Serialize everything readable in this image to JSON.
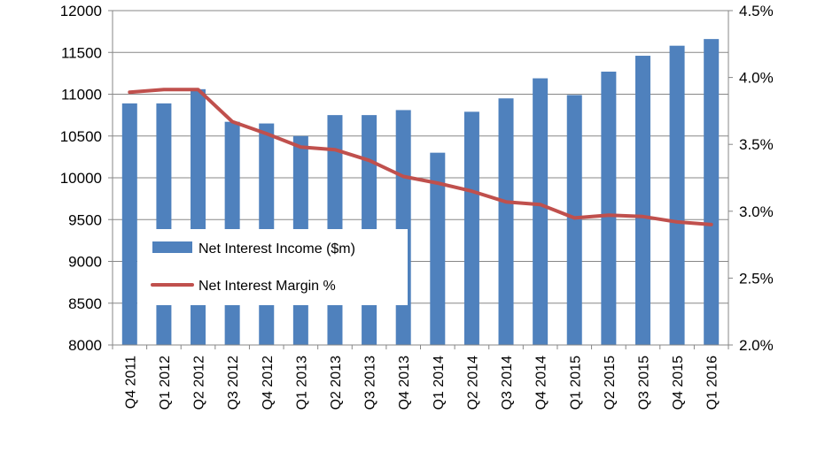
{
  "chart_data": {
    "type": "bar",
    "categories": [
      "Q4 2011",
      "Q1 2012",
      "Q2 2012",
      "Q3 2012",
      "Q4 2012",
      "Q1 2013",
      "Q2 2013",
      "Q3 2013",
      "Q4 2013",
      "Q1 2014",
      "Q2 2014",
      "Q3 2014",
      "Q4 2014",
      "Q1 2015",
      "Q2 2015",
      "Q3 2015",
      "Q4 2015",
      "Q1 2016"
    ],
    "series": [
      {
        "name": "Net Interest Income ($m)",
        "type": "bar",
        "axis": "left",
        "color": "#4f81bd",
        "values": [
          10890,
          10890,
          11060,
          10670,
          10650,
          10500,
          10750,
          10750,
          10810,
          10300,
          10790,
          10950,
          11190,
          10990,
          11270,
          11460,
          11580,
          11660
        ]
      },
      {
        "name": "Net Interest Margin %",
        "type": "line",
        "axis": "right",
        "color": "#c0504d",
        "values": [
          3.89,
          3.91,
          3.91,
          3.67,
          3.58,
          3.48,
          3.46,
          3.38,
          3.26,
          3.21,
          3.15,
          3.07,
          3.05,
          2.95,
          2.97,
          2.96,
          2.92,
          2.9
        ]
      }
    ],
    "y_left": {
      "min": 8000,
      "max": 12000,
      "ticks": [
        "8000",
        "8500",
        "9000",
        "9500",
        "10000",
        "10500",
        "11000",
        "11500",
        "12000"
      ]
    },
    "y_right": {
      "min": 2.0,
      "max": 4.5,
      "ticks": [
        "2.0%",
        "2.5%",
        "3.0%",
        "3.5%",
        "4.0%",
        "4.5%"
      ]
    },
    "grid": true,
    "legend_position": "lower-left, inside plot"
  }
}
